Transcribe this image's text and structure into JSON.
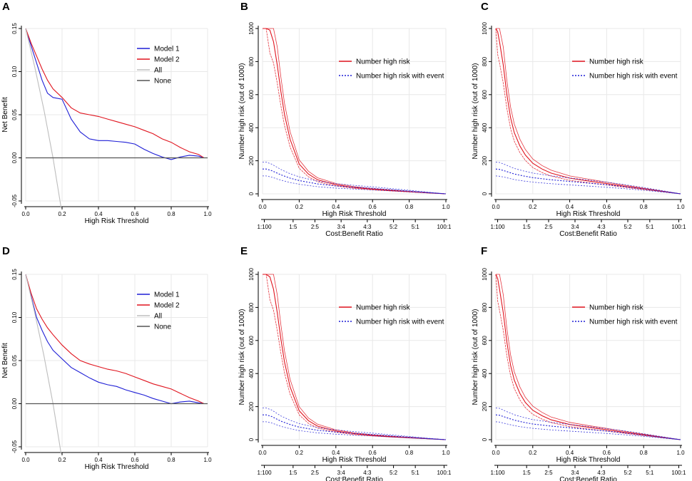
{
  "colors": {
    "model1": "#1f1fd6",
    "model2": "#e0141e",
    "all": "#bdbdbd",
    "none": "#555555",
    "grid": "#e8e8e8"
  },
  "chart_data": [
    {
      "panel": "A",
      "type": "line",
      "subtype": "decision-curve",
      "xlabel": "High Risk Threshold",
      "ylabel": "Net Benefit",
      "xlim": [
        0,
        1
      ],
      "ylim": [
        -0.05,
        0.15
      ],
      "xticks": [
        "0.0",
        "0.2",
        "0.4",
        "0.6",
        "0.8",
        "1.0"
      ],
      "yticks": [
        "-0.05",
        "0.00",
        "0.05",
        "0.10",
        "0.15"
      ],
      "legend": [
        "Model 1",
        "Model 2",
        "All",
        "None"
      ],
      "series": [
        {
          "name": "Model 1",
          "x": [
            0,
            0.03,
            0.06,
            0.09,
            0.12,
            0.15,
            0.2,
            0.25,
            0.3,
            0.35,
            0.4,
            0.45,
            0.5,
            0.55,
            0.6,
            0.65,
            0.7,
            0.75,
            0.8,
            0.85,
            0.9,
            0.95,
            0.98
          ],
          "y": [
            0.15,
            0.13,
            0.11,
            0.09,
            0.075,
            0.07,
            0.068,
            0.045,
            0.03,
            0.022,
            0.02,
            0.02,
            0.019,
            0.018,
            0.016,
            0.01,
            0.005,
            0.001,
            -0.002,
            0.001,
            0.003,
            0.002,
            0.0
          ]
        },
        {
          "name": "Model 2",
          "x": [
            0,
            0.03,
            0.06,
            0.09,
            0.12,
            0.15,
            0.2,
            0.25,
            0.3,
            0.35,
            0.4,
            0.45,
            0.5,
            0.55,
            0.6,
            0.65,
            0.7,
            0.75,
            0.8,
            0.85,
            0.9,
            0.95,
            0.98
          ],
          "y": [
            0.15,
            0.133,
            0.118,
            0.103,
            0.09,
            0.08,
            0.07,
            0.058,
            0.052,
            0.05,
            0.048,
            0.045,
            0.042,
            0.039,
            0.036,
            0.032,
            0.028,
            0.022,
            0.018,
            0.012,
            0.007,
            0.004,
            0.0
          ]
        },
        {
          "name": "All",
          "x": [
            0,
            0.05,
            0.1,
            0.15,
            0.195
          ],
          "y": [
            0.15,
            0.105,
            0.056,
            0.0,
            -0.058
          ]
        },
        {
          "name": "None",
          "x": [
            0,
            1
          ],
          "y": [
            0,
            0
          ]
        }
      ]
    },
    {
      "panel": "B",
      "type": "line",
      "subtype": "clinical-impact",
      "xlabel": "High Risk Threshold",
      "ylabel": "Number high risk (out of 1000)",
      "x2label": "Cost:Benefit Ratio",
      "xlim": [
        0,
        1
      ],
      "ylim": [
        0,
        1000
      ],
      "xticks": [
        "0.0",
        "0.2",
        "0.4",
        "0.6",
        "0.8",
        "1.0"
      ],
      "yticks": [
        "0",
        "200",
        "400",
        "600",
        "800",
        "1000"
      ],
      "x2ticks": [
        "1:100",
        "1:5",
        "2:5",
        "3:4",
        "4:3",
        "5:2",
        "5:1",
        "100:1"
      ],
      "legend": [
        "Number high risk",
        "Number high risk with event"
      ],
      "series": [
        {
          "name": "Number high risk",
          "x": [
            0,
            0.02,
            0.04,
            0.06,
            0.08,
            0.1,
            0.12,
            0.15,
            0.2,
            0.25,
            0.3,
            0.4,
            0.5,
            0.6,
            0.7,
            0.8,
            0.9,
            1.0
          ],
          "y": [
            1000,
            1000,
            990,
            920,
            780,
            620,
            480,
            330,
            180,
            120,
            85,
            55,
            38,
            28,
            20,
            13,
            6,
            0
          ]
        },
        {
          "name": "Number high risk with event",
          "x": [
            0,
            0.02,
            0.05,
            0.1,
            0.15,
            0.2,
            0.3,
            0.4,
            0.5,
            0.6,
            0.7,
            0.8,
            0.9,
            1.0
          ],
          "y": [
            150,
            150,
            140,
            115,
            95,
            80,
            60,
            48,
            40,
            33,
            25,
            17,
            8,
            0
          ]
        }
      ]
    },
    {
      "panel": "C",
      "type": "line",
      "subtype": "clinical-impact",
      "xlabel": "High Risk Threshold",
      "ylabel": "Number high risk (out of 1000)",
      "x2label": "Cost:Benefit Ratio",
      "xlim": [
        0,
        1
      ],
      "ylim": [
        0,
        1000
      ],
      "xticks": [
        "0.0",
        "0.2",
        "0.4",
        "0.6",
        "0.8",
        "1.0"
      ],
      "yticks": [
        "0",
        "200",
        "400",
        "600",
        "800",
        "1000"
      ],
      "x2ticks": [
        "1:100",
        "1:5",
        "2:5",
        "3:4",
        "4:3",
        "5:2",
        "5:1",
        "100:1"
      ],
      "legend": [
        "Number high risk",
        "Number high risk with event"
      ],
      "series": [
        {
          "name": "Number high risk",
          "x": [
            0,
            0.01,
            0.02,
            0.04,
            0.06,
            0.08,
            0.1,
            0.13,
            0.16,
            0.2,
            0.25,
            0.3,
            0.4,
            0.5,
            0.6,
            0.7,
            0.8,
            0.9,
            1.0
          ],
          "y": [
            1000,
            980,
            920,
            780,
            600,
            460,
            370,
            290,
            235,
            185,
            150,
            125,
            95,
            78,
            62,
            45,
            30,
            15,
            0
          ]
        },
        {
          "name": "Number high risk with event",
          "x": [
            0,
            0.02,
            0.05,
            0.1,
            0.15,
            0.2,
            0.3,
            0.4,
            0.5,
            0.6,
            0.7,
            0.8,
            0.9,
            1.0
          ],
          "y": [
            150,
            148,
            138,
            120,
            108,
            98,
            85,
            75,
            65,
            55,
            43,
            30,
            15,
            0
          ]
        }
      ]
    },
    {
      "panel": "D",
      "type": "line",
      "subtype": "decision-curve",
      "xlabel": "High Risk Threshold",
      "ylabel": "Net Benefit",
      "xlim": [
        0,
        1
      ],
      "ylim": [
        -0.05,
        0.15
      ],
      "xticks": [
        "0.0",
        "0.2",
        "0.4",
        "0.6",
        "0.8",
        "1.0"
      ],
      "yticks": [
        "-0.05",
        "0.00",
        "0.05",
        "0.10",
        "0.15"
      ],
      "legend": [
        "Model 1",
        "Model 2",
        "All",
        "None"
      ],
      "series": [
        {
          "name": "Model 1",
          "x": [
            0,
            0.03,
            0.06,
            0.09,
            0.12,
            0.15,
            0.2,
            0.25,
            0.3,
            0.35,
            0.4,
            0.45,
            0.5,
            0.55,
            0.6,
            0.65,
            0.7,
            0.75,
            0.8,
            0.85,
            0.9,
            0.95,
            0.98
          ],
          "y": [
            0.15,
            0.125,
            0.1,
            0.085,
            0.072,
            0.062,
            0.052,
            0.042,
            0.036,
            0.03,
            0.025,
            0.022,
            0.02,
            0.016,
            0.013,
            0.01,
            0.006,
            0.003,
            0.0,
            0.002,
            0.003,
            0.001,
            0.0
          ]
        },
        {
          "name": "Model 2",
          "x": [
            0,
            0.03,
            0.06,
            0.09,
            0.12,
            0.15,
            0.2,
            0.25,
            0.3,
            0.35,
            0.4,
            0.45,
            0.5,
            0.55,
            0.6,
            0.65,
            0.7,
            0.75,
            0.8,
            0.85,
            0.9,
            0.95,
            0.98
          ],
          "y": [
            0.15,
            0.128,
            0.11,
            0.098,
            0.088,
            0.08,
            0.068,
            0.058,
            0.05,
            0.046,
            0.043,
            0.04,
            0.038,
            0.035,
            0.031,
            0.027,
            0.023,
            0.02,
            0.017,
            0.012,
            0.007,
            0.003,
            0.0
          ]
        },
        {
          "name": "All",
          "x": [
            0,
            0.05,
            0.1,
            0.15,
            0.195
          ],
          "y": [
            0.15,
            0.105,
            0.056,
            0.0,
            -0.058
          ]
        },
        {
          "name": "None",
          "x": [
            0,
            1
          ],
          "y": [
            0,
            0
          ]
        }
      ]
    },
    {
      "panel": "E",
      "type": "line",
      "subtype": "clinical-impact",
      "xlabel": "High Risk Threshold",
      "ylabel": "Number high risk (out of 1000)",
      "x2label": "Cost:Benefit Ratio",
      "xlim": [
        0,
        1
      ],
      "ylim": [
        0,
        1000
      ],
      "xticks": [
        "0.0",
        "0.2",
        "0.4",
        "0.6",
        "0.8",
        "1.0"
      ],
      "yticks": [
        "0",
        "200",
        "400",
        "600",
        "800",
        "1000"
      ],
      "x2ticks": [
        "1:100",
        "1:5",
        "2:5",
        "3:4",
        "4:3",
        "5:2",
        "5:1",
        "100:1"
      ],
      "legend": [
        "Number high risk",
        "Number high risk with event"
      ],
      "series": [
        {
          "name": "Number high risk",
          "x": [
            0,
            0.02,
            0.04,
            0.06,
            0.08,
            0.1,
            0.12,
            0.15,
            0.2,
            0.25,
            0.3,
            0.4,
            0.5,
            0.6,
            0.7,
            0.8,
            0.9,
            1.0
          ],
          "y": [
            1000,
            1000,
            985,
            910,
            770,
            610,
            470,
            320,
            175,
            115,
            82,
            52,
            36,
            26,
            18,
            12,
            6,
            0
          ]
        },
        {
          "name": "Number high risk with event",
          "x": [
            0,
            0.02,
            0.05,
            0.1,
            0.15,
            0.2,
            0.3,
            0.4,
            0.5,
            0.6,
            0.7,
            0.8,
            0.9,
            1.0
          ],
          "y": [
            150,
            150,
            140,
            112,
            92,
            76,
            57,
            46,
            38,
            31,
            23,
            15,
            7,
            0
          ]
        }
      ]
    },
    {
      "panel": "F",
      "type": "line",
      "subtype": "clinical-impact",
      "xlabel": "High Risk Threshold",
      "ylabel": "Number high risk (out of 1000)",
      "x2label": "Cost:Benefit Ratio",
      "xlim": [
        0,
        1
      ],
      "ylim": [
        0,
        1000
      ],
      "xticks": [
        "0.0",
        "0.2",
        "0.4",
        "0.6",
        "0.8",
        "1.0"
      ],
      "yticks": [
        "0",
        "200",
        "400",
        "600",
        "800",
        "1000"
      ],
      "x2ticks": [
        "1:100",
        "1:5",
        "2:5",
        "3:4",
        "4:3",
        "5:2",
        "5:1",
        "100:1"
      ],
      "legend": [
        "Number high risk",
        "Number high risk with event"
      ],
      "series": [
        {
          "name": "Number high risk",
          "x": [
            0,
            0.01,
            0.02,
            0.04,
            0.06,
            0.08,
            0.1,
            0.13,
            0.16,
            0.2,
            0.25,
            0.3,
            0.4,
            0.5,
            0.6,
            0.7,
            0.8,
            0.9,
            1.0
          ],
          "y": [
            1000,
            975,
            910,
            770,
            590,
            450,
            360,
            280,
            225,
            178,
            145,
            120,
            92,
            75,
            60,
            44,
            29,
            14,
            0
          ]
        },
        {
          "name": "Number high risk with event",
          "x": [
            0,
            0.02,
            0.05,
            0.1,
            0.15,
            0.2,
            0.3,
            0.4,
            0.5,
            0.6,
            0.7,
            0.8,
            0.9,
            1.0
          ],
          "y": [
            150,
            148,
            136,
            118,
            105,
            95,
            82,
            72,
            62,
            52,
            41,
            28,
            14,
            0
          ]
        }
      ]
    }
  ]
}
